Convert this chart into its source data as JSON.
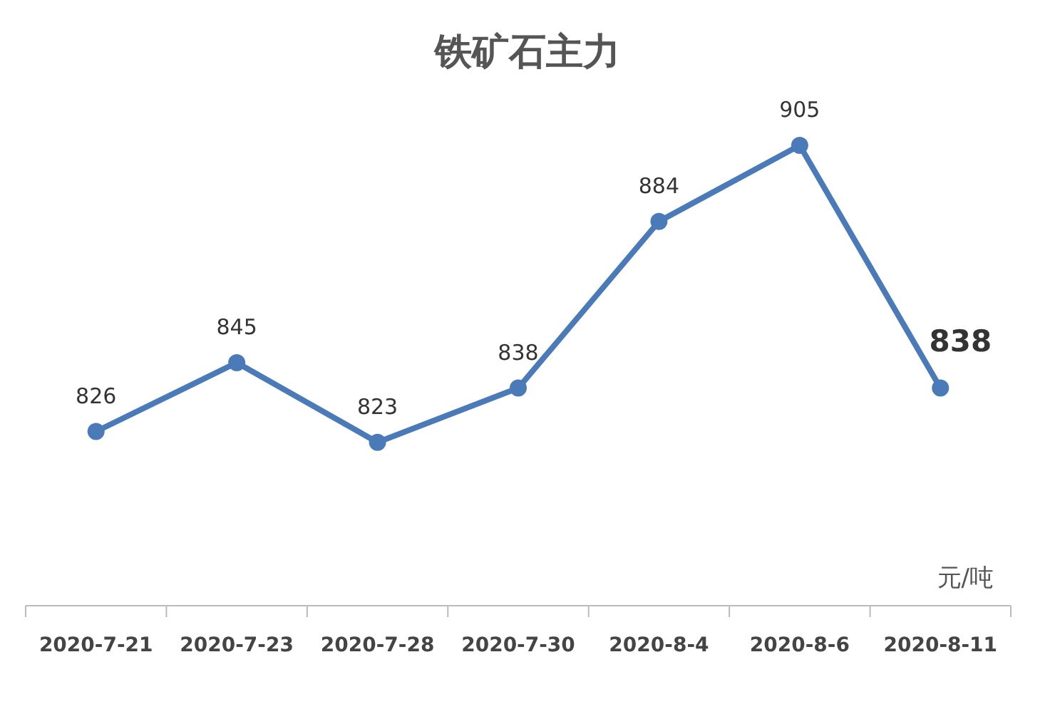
{
  "chart_data": {
    "type": "line",
    "title": "铁矿石主力",
    "annotations": [
      "元/吨"
    ],
    "categories": [
      "2020-7-21",
      "2020-7-23",
      "2020-7-28",
      "2020-7-30",
      "2020-8-4",
      "2020-8-6",
      "2020-8-11"
    ],
    "series": [
      {
        "color": "#4a7ab8",
        "values": [
          826,
          845,
          823,
          838,
          884,
          905,
          838
        ]
      }
    ],
    "data_labels": true,
    "marker": "circle"
  }
}
